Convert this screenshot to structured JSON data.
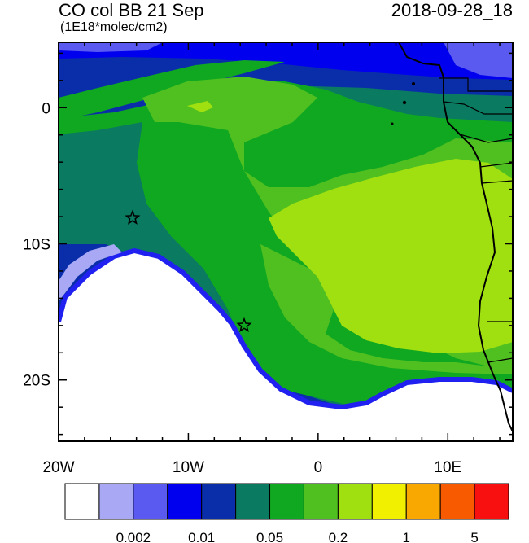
{
  "header": {
    "title_left": "CO col BB 21 Sep",
    "subtitle": "(1E18*molec/cm2)",
    "title_right": "2018-09-28_18"
  },
  "axes": {
    "x_ticks": [
      {
        "lon": -20,
        "label": "20W"
      },
      {
        "lon": -10,
        "label": "10W"
      },
      {
        "lon": 0,
        "label": "0"
      },
      {
        "lon": 10,
        "label": "10E"
      }
    ],
    "y_ticks": [
      {
        "lat": 0,
        "label": "0"
      },
      {
        "lat": -10,
        "label": "10S"
      },
      {
        "lat": -20,
        "label": "20S"
      }
    ],
    "lon_range": [
      -20,
      15
    ],
    "lat_range": [
      -24.5,
      4.8
    ]
  },
  "markers": [
    {
      "name": "star-marker-1",
      "lon": -14.3,
      "lat": -8.1
    },
    {
      "name": "star-marker-2",
      "lon": -5.7,
      "lat": -16.0
    }
  ],
  "colorbar": {
    "colors": [
      "#ffffff",
      "#a8a8f5",
      "#5a5af0",
      "#0000ee",
      "#0a2eaa",
      "#0a7a60",
      "#10a820",
      "#50c020",
      "#a0e010",
      "#f0f000",
      "#f8a800",
      "#f85a00",
      "#f81010"
    ],
    "labels": [
      {
        "boundary": 2,
        "text": "0.002"
      },
      {
        "boundary": 4,
        "text": "0.01"
      },
      {
        "boundary": 6,
        "text": "0.05"
      },
      {
        "boundary": 8,
        "text": "0.2"
      },
      {
        "boundary": 10,
        "text": "1"
      },
      {
        "boundary": 12,
        "text": "5"
      }
    ]
  }
}
